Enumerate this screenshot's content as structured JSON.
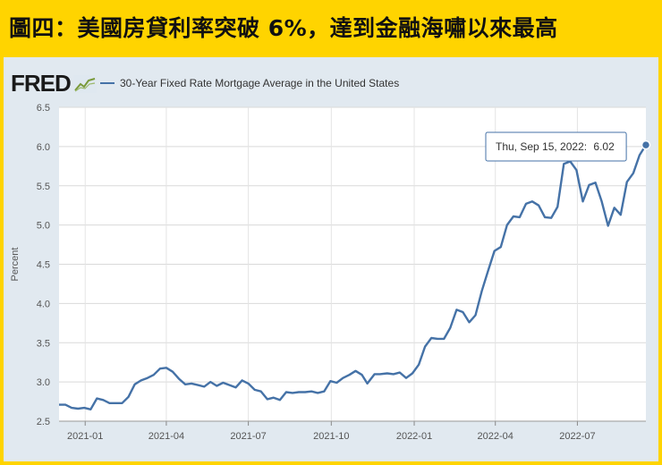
{
  "headline": "圖四：美國房貸利率突破 6%，達到金融海嘯以來最高",
  "logo": {
    "text": "FRED",
    "icon": "line-chart-icon"
  },
  "colors": {
    "background": "#ffd400",
    "panel": "#e1e9f0",
    "line": "#4572a7"
  },
  "tooltip": {
    "label": "Thu, Sep 15, 2022:",
    "value": "6.02"
  },
  "chart_data": {
    "type": "line",
    "title": "",
    "xlabel": "",
    "ylabel": "Percent",
    "legend_position": "top-left",
    "grid": true,
    "ylim": [
      2.5,
      6.5
    ],
    "yticks": [
      "2.5",
      "3.0",
      "3.5",
      "4.0",
      "4.5",
      "5.0",
      "5.5",
      "6.0",
      "6.5"
    ],
    "xticks": [
      "2021-01",
      "2021-04",
      "2021-07",
      "2021-10",
      "2022-01",
      "2022-04",
      "2022-07"
    ],
    "series": [
      {
        "name": "30-Year Fixed Rate Mortgage Average in the United States",
        "x": [
          "2020-12-03",
          "2020-12-10",
          "2020-12-17",
          "2020-12-24",
          "2020-12-31",
          "2021-01-07",
          "2021-01-14",
          "2021-01-21",
          "2021-01-28",
          "2021-02-04",
          "2021-02-11",
          "2021-02-18",
          "2021-02-25",
          "2021-03-04",
          "2021-03-11",
          "2021-03-18",
          "2021-03-25",
          "2021-04-01",
          "2021-04-08",
          "2021-04-15",
          "2021-04-22",
          "2021-04-29",
          "2021-05-06",
          "2021-05-13",
          "2021-05-20",
          "2021-05-27",
          "2021-06-03",
          "2021-06-10",
          "2021-06-17",
          "2021-06-24",
          "2021-07-01",
          "2021-07-08",
          "2021-07-15",
          "2021-07-22",
          "2021-07-29",
          "2021-08-05",
          "2021-08-12",
          "2021-08-19",
          "2021-08-26",
          "2021-09-02",
          "2021-09-09",
          "2021-09-16",
          "2021-09-23",
          "2021-09-30",
          "2021-10-07",
          "2021-10-14",
          "2021-10-21",
          "2021-10-28",
          "2021-11-04",
          "2021-11-10",
          "2021-11-18",
          "2021-11-24",
          "2021-12-02",
          "2021-12-09",
          "2021-12-16",
          "2021-12-23",
          "2021-12-30",
          "2022-01-06",
          "2022-01-13",
          "2022-01-20",
          "2022-01-27",
          "2022-02-03",
          "2022-02-10",
          "2022-02-17",
          "2022-02-24",
          "2022-03-03",
          "2022-03-10",
          "2022-03-17",
          "2022-03-24",
          "2022-03-31",
          "2022-04-07",
          "2022-04-14",
          "2022-04-21",
          "2022-04-28",
          "2022-05-05",
          "2022-05-12",
          "2022-05-19",
          "2022-05-26",
          "2022-06-02",
          "2022-06-09",
          "2022-06-16",
          "2022-06-23",
          "2022-06-30",
          "2022-07-07",
          "2022-07-14",
          "2022-07-21",
          "2022-07-28",
          "2022-08-04",
          "2022-08-11",
          "2022-08-18",
          "2022-08-25",
          "2022-09-01",
          "2022-09-08",
          "2022-09-15"
        ],
        "values": [
          2.71,
          2.71,
          2.67,
          2.66,
          2.67,
          2.65,
          2.79,
          2.77,
          2.73,
          2.73,
          2.73,
          2.81,
          2.97,
          3.02,
          3.05,
          3.09,
          3.17,
          3.18,
          3.13,
          3.04,
          2.97,
          2.98,
          2.96,
          2.94,
          3.0,
          2.95,
          2.99,
          2.96,
          2.93,
          3.02,
          2.98,
          2.9,
          2.88,
          2.78,
          2.8,
          2.77,
          2.87,
          2.86,
          2.87,
          2.87,
          2.88,
          2.86,
          2.88,
          3.01,
          2.99,
          3.05,
          3.09,
          3.14,
          3.09,
          2.98,
          3.1,
          3.1,
          3.11,
          3.1,
          3.12,
          3.05,
          3.11,
          3.22,
          3.45,
          3.56,
          3.55,
          3.55,
          3.69,
          3.92,
          3.89,
          3.76,
          3.85,
          4.16,
          4.42,
          4.67,
          4.72,
          5.0,
          5.11,
          5.1,
          5.27,
          5.3,
          5.25,
          5.1,
          5.09,
          5.23,
          5.78,
          5.81,
          5.7,
          5.3,
          5.51,
          5.54,
          5.3,
          4.99,
          5.22,
          5.13,
          5.55,
          5.66,
          5.89,
          6.02
        ]
      }
    ]
  }
}
